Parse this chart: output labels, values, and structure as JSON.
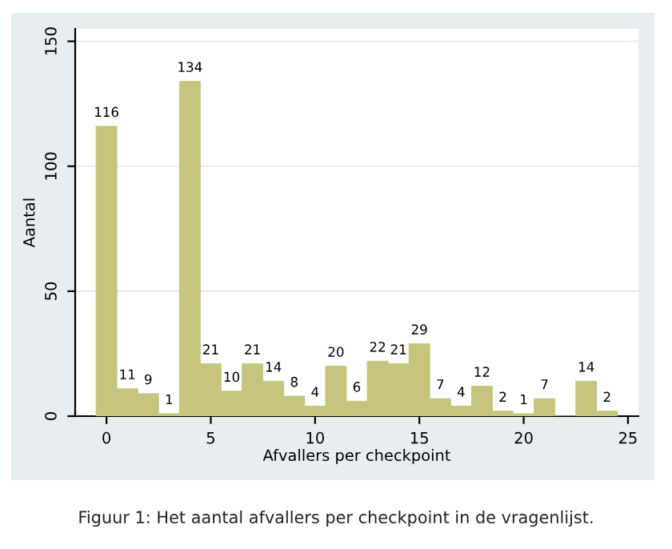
{
  "chart_data": {
    "type": "histogram",
    "xlabel": "Afvallers per checkpoint",
    "ylabel": "Aantal",
    "annotations": [
      "Figuur 1: Het aantal afvallers per checkpoint in de vragenlijst."
    ],
    "bins": [
      -0.5,
      0.5,
      1.5,
      2.5,
      3.5,
      4.5,
      5.5,
      6.5,
      7.5,
      8.5,
      9.5,
      10.5,
      11.5,
      12.5,
      13.5,
      14.5,
      15.5,
      16.5,
      17.5,
      18.5,
      19.5,
      20.5,
      21.5,
      22.5,
      23.5,
      24.5
    ],
    "values": [
      116,
      11,
      9,
      1,
      134,
      21,
      10,
      21,
      14,
      8,
      4,
      20,
      6,
      22,
      21,
      29,
      7,
      4,
      12,
      2,
      1,
      7,
      0,
      14,
      2
    ],
    "value_labels": [
      "116",
      "11",
      "9",
      "1",
      "134",
      "21",
      "10",
      "21",
      "14",
      "8",
      "4",
      "20",
      "6",
      "22",
      "21",
      "29",
      "7",
      "4",
      "12",
      "2",
      "1",
      "7",
      null,
      "14",
      "2"
    ],
    "color": "#c5c47c",
    "xlim": [
      -1.5,
      25.5
    ],
    "xticks": [
      0,
      5,
      10,
      15,
      20,
      25
    ],
    "ylim": [
      0,
      155
    ],
    "yticks": [
      0,
      50,
      100,
      150
    ],
    "grid": "y",
    "legend": false
  }
}
